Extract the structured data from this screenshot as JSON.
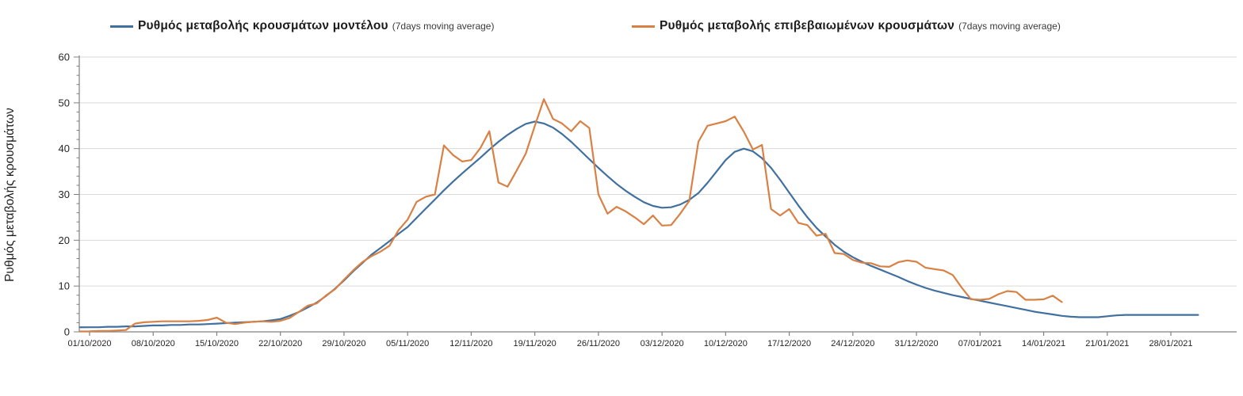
{
  "legend": {
    "model": {
      "label": "Ρυθμός μεταβολής κρουσμάτων μοντέλου",
      "suffix": "(7days moving average)",
      "color": "#40709F"
    },
    "confirmed": {
      "label": "Ρυθμός μεταβολής επιβεβαιωμένων κρουσμάτων",
      "suffix": "(7days moving average)",
      "color": "#D98144"
    }
  },
  "colors": {
    "model_line": "#40709F",
    "confirmed_line": "#D98144",
    "gridline": "#D9D9D9",
    "axis": "#808080",
    "tick_label": "#262626"
  },
  "chart_data": {
    "type": "line",
    "title": "",
    "y_axis_title": "Ρυθμός μεταβολής κρουσμάτων",
    "xlabel": "",
    "ylabel": "Ρυθμός μεταβολής κρουσμάτων",
    "ylim": [
      0,
      60
    ],
    "y_ticks": [
      0,
      10,
      20,
      30,
      40,
      50,
      60
    ],
    "y_minor_tick_step": 2,
    "grid": "horizontal",
    "legend_position": "top",
    "x_frequency": "daily",
    "x_start_date": "01/10/2020",
    "x_tick_labels": [
      "01/10/2020",
      "08/10/2020",
      "15/10/2020",
      "22/10/2020",
      "29/10/2020",
      "05/11/2020",
      "12/11/2020",
      "19/11/2020",
      "26/11/2020",
      "03/12/2020",
      "10/12/2020",
      "17/12/2020",
      "24/12/2020",
      "31/12/2020",
      "07/01/2021",
      "14/01/2021",
      "21/01/2021",
      "28/01/2021"
    ],
    "x_tick_day_index": [
      0,
      7,
      14,
      21,
      28,
      35,
      42,
      49,
      56,
      63,
      70,
      77,
      84,
      91,
      98,
      105,
      112,
      119
    ],
    "series": [
      {
        "name": "Ρυθμός μεταβολής κρουσμάτων μοντέλου (7days moving average)",
        "color": "#40709F",
        "start_date": "01/10/2020",
        "values": [
          1.0,
          1.0,
          1.1,
          1.1,
          1.2,
          1.2,
          1.3,
          1.4,
          1.4,
          1.5,
          1.5,
          1.6,
          1.6,
          1.7,
          1.8,
          1.9,
          2.0,
          2.1,
          2.2,
          2.3,
          2.5,
          2.8,
          3.5,
          4.3,
          5.3,
          6.4,
          7.8,
          9.4,
          11.2,
          13.2,
          15.0,
          16.8,
          18.3,
          19.8,
          21.4,
          22.9,
          24.9,
          26.9,
          28.9,
          30.9,
          32.8,
          34.6,
          36.3,
          38.0,
          39.8,
          41.5,
          43.0,
          44.3,
          45.4,
          45.9,
          45.5,
          44.6,
          43.2,
          41.5,
          39.6,
          37.7,
          35.8,
          34.0,
          32.3,
          30.8,
          29.5,
          28.3,
          27.5,
          27.1,
          27.2,
          27.8,
          28.8,
          30.3,
          32.5,
          35.0,
          37.5,
          39.3,
          40.0,
          39.4,
          37.9,
          35.8,
          33.2,
          30.4,
          27.6,
          25.0,
          22.7,
          20.8,
          19.0,
          17.5,
          16.3,
          15.3,
          14.4,
          13.6,
          12.8,
          12.0,
          11.1,
          10.3,
          9.6,
          9.0,
          8.5,
          8.0,
          7.6,
          7.2,
          6.8,
          6.4,
          6.0,
          5.6,
          5.2,
          4.8,
          4.4,
          4.1,
          3.8,
          3.5,
          3.3,
          3.2,
          3.2,
          3.2,
          3.4,
          3.6,
          3.7,
          3.7,
          3.7,
          3.7,
          3.7,
          3.7,
          3.7,
          3.7,
          3.7
        ]
      },
      {
        "name": "Ρυθμός μεταβολής επιβεβαιωμένων κρουσμάτων (7days moving average)",
        "color": "#D98144",
        "start_date": "01/10/2020",
        "values": [
          0.1,
          0.2,
          0.2,
          0.3,
          0.4,
          1.8,
          2.1,
          2.2,
          2.3,
          2.3,
          2.3,
          2.3,
          2.4,
          2.6,
          3.1,
          2.0,
          1.7,
          2.0,
          2.2,
          2.3,
          2.2,
          2.4,
          3.0,
          4.3,
          5.7,
          6.2,
          7.9,
          9.3,
          11.4,
          13.4,
          15.2,
          16.5,
          17.5,
          18.8,
          22.2,
          24.5,
          28.4,
          29.5,
          30.0,
          40.7,
          38.6,
          37.2,
          37.5,
          40.1,
          43.8,
          32.6,
          31.7,
          35.2,
          38.9,
          45.0,
          50.8,
          46.5,
          45.5,
          43.8,
          46.0,
          44.5,
          30.0,
          25.8,
          27.3,
          26.3,
          25.0,
          23.5,
          25.4,
          23.2,
          23.3,
          25.8,
          28.6,
          41.5,
          45.0,
          45.5,
          46.0,
          47.0,
          43.7,
          39.8,
          40.8,
          26.8,
          25.4,
          26.8,
          23.8,
          23.3,
          21.0,
          21.4,
          17.2,
          17.0,
          15.7,
          15.1,
          15.0,
          14.3,
          14.2,
          15.2,
          15.6,
          15.3,
          14.0,
          13.7,
          13.4,
          12.4,
          9.6,
          7.1,
          7.0,
          7.2,
          8.2,
          8.9,
          8.7,
          7.0,
          7.0,
          7.1,
          7.9,
          6.5
        ]
      }
    ]
  }
}
